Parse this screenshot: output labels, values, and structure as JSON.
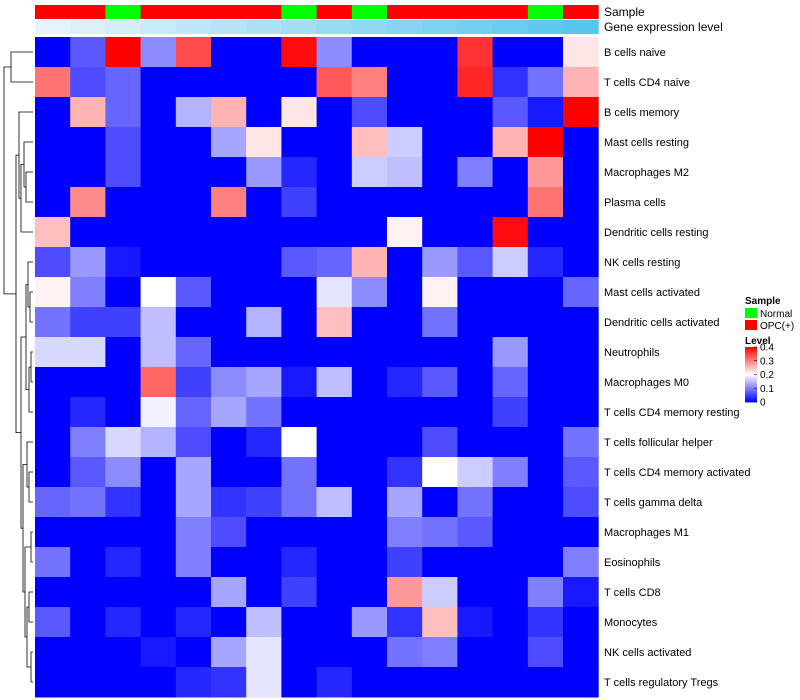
{
  "chart_data": {
    "type": "heatmap",
    "title": "",
    "xlabel": "",
    "ylabel": "",
    "column_annotations": [
      {
        "name": "Sample",
        "values": [
          "OPC(+)",
          "OPC(+)",
          "Normal",
          "OPC(+)",
          "OPC(+)",
          "OPC(+)",
          "OPC(+)",
          "Normal",
          "OPC(+)",
          "Normal",
          "OPC(+)",
          "OPC(+)",
          "OPC(+)",
          "OPC(+)",
          "Normal",
          "OPC(+)"
        ]
      },
      {
        "name": "Gene expression level",
        "values": [
          0.05,
          0.11,
          0.17,
          0.23,
          0.29,
          0.35,
          0.41,
          0.47,
          0.53,
          0.59,
          0.65,
          0.71,
          0.77,
          0.83,
          0.89,
          0.95
        ]
      }
    ],
    "rows": [
      "B cells naive",
      "T cells CD4 naive",
      "B cells memory",
      "Mast cells resting",
      "Macrophages M2",
      "Plasma cells",
      "Dendritic cells resting",
      "NK cells resting",
      "Mast cells activated",
      "Dendritic cells activated",
      "Neutrophils",
      "Macrophages M0",
      "T cells CD4 memory resting",
      "T cells follicular helper",
      "T cells CD4 memory activated",
      "T cells gamma delta",
      "Macrophages M1",
      "Eosinophils",
      "T cells CD8",
      "Monocytes",
      "NK cells activated",
      "T cells regulatory  Tregs"
    ],
    "matrix": [
      [
        0,
        0.07,
        0.4,
        0.11,
        0.34,
        0,
        0,
        0.39,
        0.11,
        0,
        0,
        0,
        0.36,
        0,
        0,
        0.22
      ],
      [
        0.31,
        0.06,
        0.08,
        0,
        0,
        0,
        0,
        0,
        0.33,
        0.3,
        0,
        0,
        0.37,
        0.04,
        0.09,
        0.26
      ],
      [
        0,
        0.26,
        0.08,
        0,
        0.14,
        0.26,
        0,
        0.22,
        0,
        0.06,
        0,
        0,
        0,
        0.07,
        0.02,
        0.4
      ],
      [
        0,
        0,
        0.06,
        0,
        0,
        0.13,
        0.22,
        0,
        0,
        0.25,
        0.16,
        0,
        0,
        0.26,
        0.4,
        0
      ],
      [
        0,
        0,
        0.06,
        0,
        0,
        0,
        0.12,
        0.03,
        0,
        0.16,
        0.15,
        0,
        0.1,
        0,
        0.28,
        0
      ],
      [
        0,
        0.29,
        0,
        0,
        0,
        0.3,
        0,
        0.05,
        0,
        0,
        0,
        0,
        0,
        0,
        0.31,
        0
      ],
      [
        0.25,
        0,
        0,
        0,
        0,
        0,
        0,
        0,
        0,
        0,
        0.21,
        0,
        0,
        0.39,
        0,
        0
      ],
      [
        0.06,
        0.12,
        0.02,
        0,
        0,
        0,
        0,
        0.07,
        0.08,
        0.26,
        0,
        0.12,
        0.07,
        0.16,
        0.03,
        0
      ],
      [
        0.21,
        0.1,
        0,
        0.2,
        0.07,
        0,
        0,
        0,
        0.18,
        0.11,
        0,
        0.21,
        0,
        0,
        0,
        0.08
      ],
      [
        0.09,
        0.05,
        0.05,
        0.15,
        0,
        0,
        0.14,
        0,
        0.25,
        0,
        0,
        0.09,
        0,
        0,
        0,
        0
      ],
      [
        0.17,
        0.17,
        0,
        0.15,
        0.08,
        0,
        0,
        0,
        0,
        0,
        0,
        0,
        0,
        0.12,
        0,
        0
      ],
      [
        0,
        0,
        0,
        0.32,
        0.05,
        0.11,
        0.13,
        0.02,
        0.15,
        0,
        0.03,
        0.07,
        0,
        0.08,
        0,
        0
      ],
      [
        0,
        0.03,
        0,
        0.19,
        0.08,
        0.13,
        0.09,
        0,
        0,
        0,
        0,
        0,
        0,
        0.05,
        0,
        0
      ],
      [
        0,
        0.1,
        0.17,
        0.14,
        0.06,
        0,
        0.03,
        0.2,
        0,
        0,
        0,
        0.06,
        0,
        0,
        0,
        0.09
      ],
      [
        0,
        0.07,
        0.11,
        0,
        0.13,
        0,
        0,
        0.09,
        0,
        0,
        0.04,
        0.2,
        0.16,
        0.1,
        0,
        0.07
      ],
      [
        0.08,
        0.09,
        0.04,
        0,
        0.13,
        0.04,
        0.05,
        0.09,
        0.15,
        0,
        0.13,
        0,
        0.09,
        0,
        0,
        0.06
      ],
      [
        0,
        0,
        0,
        0,
        0.1,
        0.06,
        0,
        0,
        0,
        0,
        0.1,
        0.09,
        0.07,
        0,
        0,
        0
      ],
      [
        0.09,
        0,
        0.03,
        0,
        0.1,
        0,
        0,
        0.03,
        0,
        0,
        0.05,
        0,
        0,
        0,
        0,
        0.1
      ],
      [
        0,
        0,
        0,
        0,
        0,
        0.13,
        0,
        0.05,
        0,
        0,
        0.28,
        0.16,
        0,
        0,
        0.1,
        0.02
      ],
      [
        0.07,
        0,
        0.03,
        0,
        0.03,
        0,
        0.15,
        0,
        0,
        0.12,
        0.04,
        0.25,
        0.02,
        0,
        0.04,
        0
      ],
      [
        0,
        0,
        0,
        0.02,
        0,
        0.13,
        0.18,
        0,
        0,
        0,
        0.09,
        0.1,
        0,
        0,
        0.06,
        0
      ],
      [
        0,
        0,
        0,
        0,
        0.03,
        0.04,
        0.18,
        0,
        0.03,
        0,
        0,
        0,
        0,
        0,
        0,
        0
      ]
    ],
    "colorscale": {
      "min": 0,
      "max": 0.4,
      "colors": [
        "#0000ff",
        "#ffffff",
        "#ff0000"
      ],
      "ticks": [
        "0.4",
        "0.3",
        "0.2",
        "0.1",
        "0"
      ],
      "tick_values": [
        0.4,
        0.3,
        0.2,
        0.1,
        0
      ]
    },
    "sample_colors": {
      "Normal": "#00ff00",
      "OPC(+)": "#ff0000"
    },
    "expression_color_range": [
      "#eef6fb",
      "#4fc3ed"
    ],
    "legend": {
      "position": "right",
      "sample_title": "Sample",
      "sample_items": [
        "Normal",
        "OPC(+)"
      ],
      "level_title": "Level"
    },
    "dendrogram": "rows"
  }
}
